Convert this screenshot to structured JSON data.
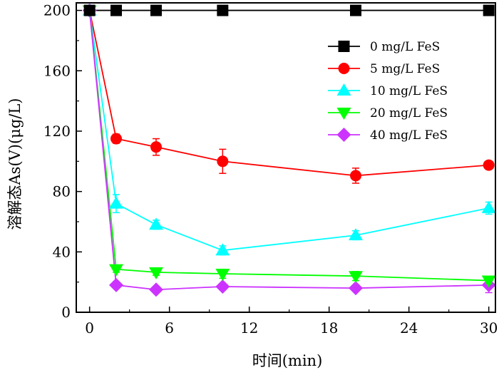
{
  "chart_data": {
    "type": "line",
    "xlabel": "时间(min)",
    "ylabel": "溶解态As(V)(μg/L)",
    "xlim": [
      -1,
      30.5
    ],
    "ylim": [
      0,
      205
    ],
    "xticks": [
      0,
      6,
      12,
      18,
      24,
      30
    ],
    "yticks": [
      0,
      40,
      80,
      120,
      160,
      200
    ],
    "x_tick_labels": [
      "0",
      "6",
      "12",
      "18",
      "24",
      "30"
    ],
    "y_tick_labels": [
      "0",
      "40",
      "80",
      "120",
      "160",
      "200"
    ],
    "legend_position": "top-right",
    "x": [
      0,
      2,
      5,
      10,
      20,
      30
    ],
    "series": [
      {
        "name": "0 mg/L FeS",
        "values": [
          200,
          200,
          200,
          200,
          200,
          200
        ],
        "errors": [
          0,
          0,
          0,
          0,
          0,
          0
        ],
        "color": "#000000",
        "marker": "square"
      },
      {
        "name": "5 mg/L FeS",
        "values": [
          200,
          115,
          109.5,
          100,
          90.5,
          97.5
        ],
        "errors": [
          0,
          3,
          5.5,
          8,
          5,
          2
        ],
        "color": "#ff0000",
        "marker": "circle"
      },
      {
        "name": "10 mg/L FeS",
        "values": [
          200,
          72,
          58,
          41,
          51,
          69
        ],
        "errors": [
          0,
          6,
          3,
          3,
          3,
          4
        ],
        "color": "#00ffff",
        "marker": "triangle-up"
      },
      {
        "name": "20 mg/L FeS",
        "values": [
          200,
          28.5,
          26.5,
          25.5,
          24,
          21
        ],
        "errors": [
          0,
          2,
          2,
          3,
          3,
          2
        ],
        "color": "#00ff00",
        "marker": "triangle-down"
      },
      {
        "name": "40 mg/L FeS",
        "values": [
          200,
          18,
          15,
          17,
          16,
          18
        ],
        "errors": [
          0,
          2,
          2,
          2,
          2,
          5
        ],
        "color": "#cc33ff",
        "marker": "diamond"
      }
    ]
  }
}
